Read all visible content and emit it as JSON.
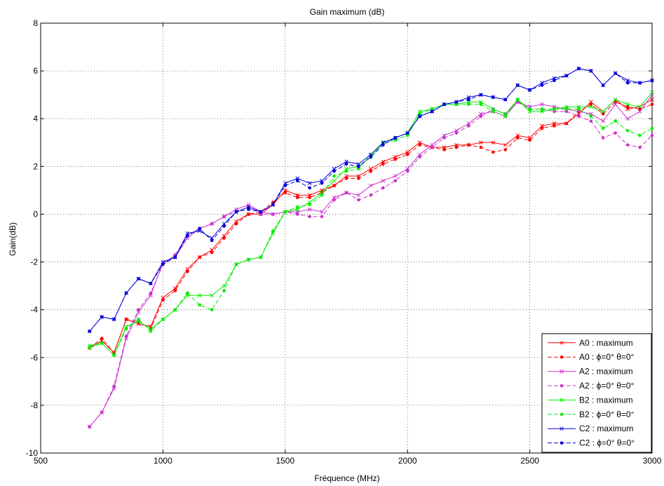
{
  "chart_data": {
    "type": "line",
    "title": "Gain maximum (dB)",
    "xlabel": "Fréquence (MHz)",
    "ylabel": "Gain(dB)",
    "xlim": [
      500,
      3000
    ],
    "ylim": [
      -10,
      8
    ],
    "xticks": [
      500,
      1000,
      1500,
      2000,
      2500,
      3000
    ],
    "yticks": [
      -10,
      -8,
      -6,
      -4,
      -2,
      0,
      2,
      4,
      6,
      8
    ],
    "grid": true,
    "legend_position": "bottom-right",
    "x": [
      700,
      750,
      800,
      850,
      900,
      950,
      1000,
      1050,
      1100,
      1150,
      1200,
      1250,
      1300,
      1350,
      1400,
      1450,
      1500,
      1550,
      1600,
      1650,
      1700,
      1750,
      1800,
      1850,
      1900,
      1950,
      2000,
      2050,
      2100,
      2150,
      2200,
      2250,
      2300,
      2350,
      2400,
      2450,
      2500,
      2550,
      2600,
      2650,
      2700,
      2750,
      2800,
      2850,
      2900,
      2950,
      3000
    ],
    "series": [
      {
        "name": "A0 : maximum",
        "color": "#ff0000",
        "dash": "solid",
        "marker": "x",
        "values": [
          -5.6,
          -5.3,
          -5.8,
          -4.4,
          -4.6,
          -4.7,
          -3.5,
          -3.1,
          -2.3,
          -1.8,
          -1.5,
          -0.9,
          -0.3,
          0.0,
          0.0,
          0.4,
          1.0,
          0.8,
          0.8,
          1.0,
          1.2,
          1.6,
          1.6,
          1.9,
          2.2,
          2.4,
          2.6,
          3.0,
          2.8,
          2.8,
          2.9,
          2.9,
          3.0,
          3.0,
          2.9,
          3.3,
          3.2,
          3.7,
          3.8,
          3.8,
          4.2,
          4.7,
          4.3,
          4.8,
          4.4,
          4.5,
          4.8
        ]
      },
      {
        "name": "A0 : ϕ=0° θ=0°",
        "color": "#ff0000",
        "dash": "dashed",
        "marker": "dot",
        "values": [
          -5.6,
          -5.2,
          -5.8,
          -4.4,
          -4.5,
          -4.8,
          -3.6,
          -3.2,
          -2.4,
          -1.8,
          -1.6,
          -1.0,
          -0.4,
          0.0,
          0.1,
          0.5,
          0.9,
          0.7,
          0.7,
          0.9,
          1.2,
          1.5,
          1.5,
          1.8,
          2.1,
          2.3,
          2.5,
          2.9,
          2.8,
          2.7,
          2.8,
          2.9,
          2.8,
          2.6,
          2.7,
          3.2,
          3.1,
          3.6,
          3.7,
          3.8,
          4.3,
          4.6,
          4.2,
          4.7,
          4.5,
          4.4,
          4.6
        ]
      },
      {
        "name": "A2 : maximum",
        "color": "#cc33cc",
        "dash": "solid",
        "marker": "x",
        "values": [
          -8.9,
          -8.3,
          -7.3,
          -5.2,
          -4.1,
          -3.4,
          -2.0,
          -1.8,
          -1.0,
          -0.6,
          -0.4,
          -0.1,
          0.2,
          0.4,
          0.1,
          0.0,
          0.1,
          0.1,
          0.2,
          0.1,
          0.7,
          0.9,
          0.8,
          1.2,
          1.4,
          1.6,
          1.9,
          2.5,
          2.9,
          3.3,
          3.5,
          3.8,
          4.2,
          4.3,
          4.1,
          4.7,
          4.5,
          4.6,
          4.5,
          4.4,
          4.3,
          4.2,
          3.9,
          4.6,
          4.0,
          4.3,
          5.0
        ]
      },
      {
        "name": "A2 : ϕ=0° θ=0°",
        "color": "#cc33cc",
        "dash": "dashed",
        "marker": "dot",
        "values": [
          -8.9,
          -8.3,
          -7.2,
          -5.1,
          -4.0,
          -3.3,
          -2.1,
          -1.7,
          -0.9,
          -0.6,
          -0.4,
          -0.1,
          0.1,
          0.3,
          0.0,
          0.0,
          0.1,
          0.0,
          -0.1,
          -0.1,
          0.6,
          0.9,
          0.6,
          0.8,
          1.1,
          1.4,
          1.8,
          2.4,
          2.8,
          3.2,
          3.4,
          3.7,
          4.1,
          4.4,
          4.2,
          4.7,
          4.4,
          4.4,
          4.3,
          4.3,
          4.1,
          3.9,
          3.2,
          3.4,
          2.9,
          2.8,
          3.3
        ]
      },
      {
        "name": "B2 : maximum",
        "color": "#00ee00",
        "dash": "solid",
        "marker": "x",
        "values": [
          -5.5,
          -5.4,
          -5.9,
          -4.7,
          -4.5,
          -4.8,
          -4.4,
          -4.0,
          -3.4,
          -3.4,
          -3.4,
          -3.0,
          -2.1,
          -1.9,
          -1.8,
          -0.8,
          0.1,
          0.2,
          0.5,
          0.9,
          1.4,
          1.9,
          2.0,
          2.4,
          3.0,
          3.2,
          3.4,
          4.3,
          4.4,
          4.6,
          4.6,
          4.7,
          4.7,
          4.4,
          4.2,
          4.8,
          4.3,
          4.3,
          4.4,
          4.5,
          4.5,
          4.5,
          4.3,
          4.8,
          4.6,
          4.5,
          5.1
        ]
      },
      {
        "name": "B2 : ϕ=0° θ=0°",
        "color": "#00ee00",
        "dash": "dashed",
        "marker": "dot",
        "values": [
          -5.6,
          -5.4,
          -5.9,
          -4.8,
          -4.4,
          -4.9,
          -4.4,
          -4.0,
          -3.3,
          -3.8,
          -4.0,
          -3.2,
          -2.1,
          -1.9,
          -1.8,
          -0.7,
          0.1,
          0.3,
          0.4,
          0.8,
          1.6,
          1.8,
          1.9,
          2.5,
          3.0,
          3.1,
          3.3,
          4.2,
          4.4,
          4.6,
          4.6,
          4.6,
          4.6,
          4.3,
          4.1,
          4.8,
          4.4,
          4.4,
          4.4,
          4.4,
          4.4,
          4.1,
          3.6,
          3.9,
          3.5,
          3.3,
          3.6
        ]
      },
      {
        "name": "C2 : maximum",
        "color": "#0000dd",
        "dash": "solid",
        "marker": "x",
        "values": [
          -4.9,
          -4.3,
          -4.4,
          -3.3,
          -2.7,
          -2.9,
          -2.0,
          -1.8,
          -0.8,
          -0.7,
          -1.0,
          -0.4,
          0.1,
          0.3,
          0.1,
          0.4,
          1.3,
          1.5,
          1.3,
          1.4,
          1.9,
          2.2,
          2.1,
          2.5,
          3.0,
          3.2,
          3.4,
          4.1,
          4.3,
          4.6,
          4.7,
          4.9,
          5.0,
          4.9,
          4.8,
          5.4,
          5.2,
          5.5,
          5.7,
          5.8,
          6.1,
          6.0,
          5.4,
          5.9,
          5.6,
          5.5,
          5.6
        ]
      },
      {
        "name": "C2 : ϕ=0° θ=0°",
        "color": "#0000dd",
        "dash": "dashed",
        "marker": "dot",
        "values": [
          -4.9,
          -4.3,
          -4.4,
          -3.3,
          -2.7,
          -2.9,
          -2.1,
          -1.8,
          -0.9,
          -0.6,
          -1.1,
          -0.5,
          0.1,
          0.2,
          0.1,
          0.4,
          1.2,
          1.4,
          1.1,
          1.3,
          1.8,
          2.1,
          2.0,
          2.4,
          2.9,
          3.2,
          3.4,
          4.1,
          4.3,
          4.6,
          4.7,
          4.8,
          5.0,
          4.9,
          4.8,
          5.4,
          5.2,
          5.4,
          5.6,
          5.8,
          6.1,
          6.0,
          5.4,
          5.9,
          5.5,
          5.5,
          5.6
        ]
      }
    ]
  }
}
